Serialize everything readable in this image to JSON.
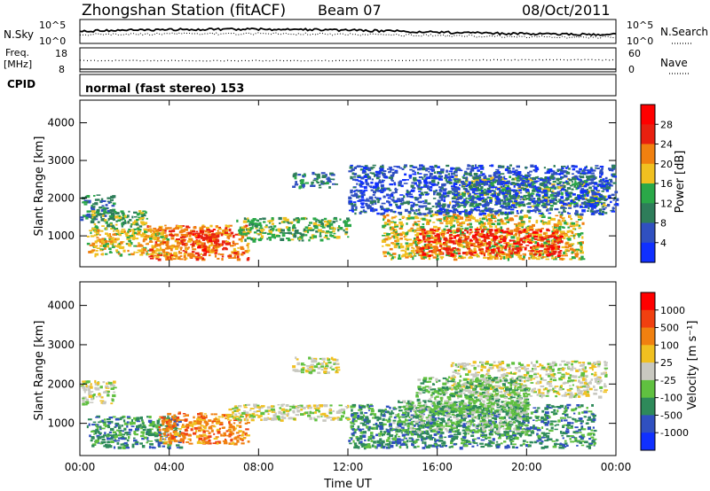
{
  "header": {
    "station": "Zhongshan Station (fitACF)",
    "beam": "Beam 07",
    "date": "08/Oct/2011"
  },
  "strip_nsky": {
    "left_label": "N.Sky",
    "right_label": "N.Search",
    "left_ticks": [
      "10^5",
      "10^0"
    ],
    "right_ticks": [
      "10^5",
      "10^0"
    ]
  },
  "strip_freq": {
    "left_label_1": "Freq.",
    "left_label_2": "[MHz]",
    "right_label": "Nave",
    "left_ticks": [
      "18",
      "8"
    ],
    "right_ticks": [
      "60",
      "0"
    ]
  },
  "strip_cpid": {
    "label": "CPID",
    "text": "normal (fast stereo) 153"
  },
  "colors": {
    "power_scale": [
      "#1030ff",
      "#3050c0",
      "#2e7d5a",
      "#2aa848",
      "#f0c020",
      "#f08010",
      "#e82010",
      "#ff0000"
    ],
    "velocity_scale": [
      "#ff0000",
      "#f04010",
      "#f08010",
      "#f0c020",
      "#c8c8c0",
      "#60c040",
      "#2e8a5a",
      "#3050c0",
      "#1030ff"
    ]
  },
  "chart_data": [
    {
      "type": "heatmap",
      "panel": "power",
      "ylabel": "Slant Range [km]",
      "xlabel": "",
      "x_ticks": [
        "00:00",
        "04:00",
        "08:00",
        "12:00",
        "16:00",
        "20:00",
        "00:00"
      ],
      "y_ticks": [
        "1000",
        "2000",
        "3000",
        "4000"
      ],
      "ylim": [
        180,
        4600
      ],
      "xlim": [
        0,
        24
      ],
      "colorbar_label": "Power [dB]",
      "colorbar_ticks": [
        "4",
        "8",
        "12",
        "16",
        "20",
        "24",
        "28"
      ],
      "scatter_regions": [
        {
          "x": [
            0.0,
            1.5
          ],
          "y": [
            1400,
            2100
          ],
          "level": 2
        },
        {
          "x": [
            0.5,
            3.0
          ],
          "y": [
            1200,
            1700
          ],
          "level": 3
        },
        {
          "x": [
            0.3,
            4.0
          ],
          "y": [
            500,
            1200
          ],
          "level": 4
        },
        {
          "x": [
            3.0,
            7.5
          ],
          "y": [
            400,
            1300
          ],
          "level": 5
        },
        {
          "x": [
            5.0,
            6.5
          ],
          "y": [
            600,
            1200
          ],
          "level": 6
        },
        {
          "x": [
            7.0,
            12.0
          ],
          "y": [
            900,
            1500
          ],
          "level": 3
        },
        {
          "x": [
            9.5,
            11.5
          ],
          "y": [
            2300,
            2700
          ],
          "level": 2
        },
        {
          "x": [
            13.5,
            22.5
          ],
          "y": [
            400,
            1600
          ],
          "level": 4
        },
        {
          "x": [
            15.0,
            21.5
          ],
          "y": [
            500,
            1200
          ],
          "level": 6
        },
        {
          "x": [
            16.5,
            23.5
          ],
          "y": [
            1800,
            2600
          ],
          "level": 3
        },
        {
          "x": [
            12.0,
            24.0
          ],
          "y": [
            1600,
            2900
          ],
          "level": 1
        }
      ]
    },
    {
      "type": "heatmap",
      "panel": "velocity",
      "ylabel": "Slant Range [km]",
      "xlabel": "Time UT",
      "x_ticks": [
        "00:00",
        "04:00",
        "08:00",
        "12:00",
        "16:00",
        "20:00",
        "00:00"
      ],
      "y_ticks": [
        "1000",
        "2000",
        "3000",
        "4000"
      ],
      "ylim": [
        180,
        4600
      ],
      "xlim": [
        0,
        24
      ],
      "colorbar_label": "Velocity [m s⁻¹]",
      "colorbar_ticks": [
        "1000",
        "500",
        "100",
        "25",
        "-25",
        "-100",
        "-500",
        "-1000"
      ],
      "scatter_regions": [
        {
          "x": [
            0.0,
            1.5
          ],
          "y": [
            1500,
            2100
          ],
          "level": 4
        },
        {
          "x": [
            0.3,
            4.5
          ],
          "y": [
            400,
            1200
          ],
          "level": 6
        },
        {
          "x": [
            3.5,
            7.5
          ],
          "y": [
            500,
            1300
          ],
          "level": 2
        },
        {
          "x": [
            6.5,
            12.0
          ],
          "y": [
            1100,
            1500
          ],
          "level": 4
        },
        {
          "x": [
            9.5,
            11.5
          ],
          "y": [
            2300,
            2700
          ],
          "level": 4
        },
        {
          "x": [
            12.0,
            23.0
          ],
          "y": [
            400,
            1500
          ],
          "level": 6
        },
        {
          "x": [
            14.0,
            20.0
          ],
          "y": [
            800,
            1600
          ],
          "level": 5
        },
        {
          "x": [
            16.5,
            23.5
          ],
          "y": [
            1700,
            2600
          ],
          "level": 4
        },
        {
          "x": [
            15.0,
            20.0
          ],
          "y": [
            1300,
            2200
          ],
          "level": 5
        }
      ]
    }
  ]
}
